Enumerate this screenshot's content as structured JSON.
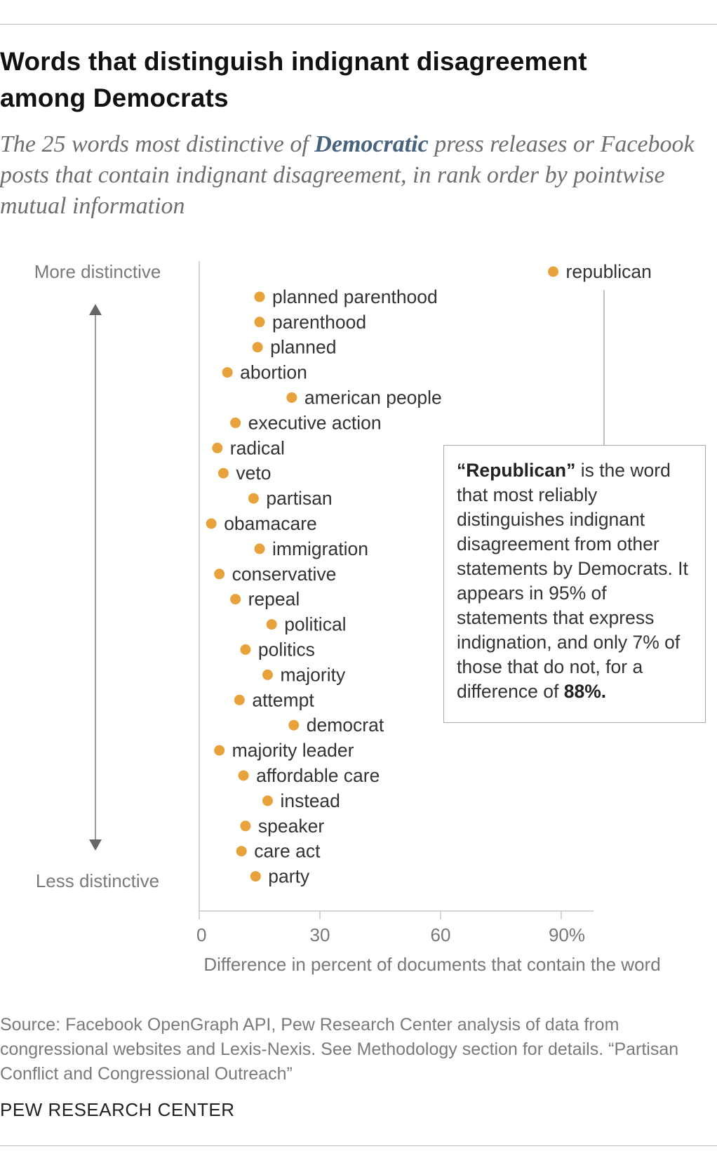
{
  "title": "Words that distinguish indignant disagreement among Democrats",
  "subtitle": {
    "before": "The 25 words most distinctive of ",
    "emphasis": "Democratic",
    "after": " press releases or Facebook posts that contain indignant disagreement, in rank order by pointwise mutual information"
  },
  "chart_data": {
    "type": "scatter",
    "xlabel": "Difference in percent of documents that contain the word",
    "xlim": [
      0,
      97
    ],
    "xticks": [
      {
        "value": 0,
        "label": "0"
      },
      {
        "value": 30,
        "label": "30"
      },
      {
        "value": 60,
        "label": "60"
      },
      {
        "value": 90,
        "label": "90%"
      }
    ],
    "ylabel_top": "More distinctive",
    "ylabel_bottom": "Less distinctive",
    "marker_color": "#e8a23c",
    "points": [
      {
        "rank": 1,
        "word": "republican",
        "x": 88
      },
      {
        "rank": 2,
        "word": "planned parenthood",
        "x": 15
      },
      {
        "rank": 3,
        "word": "parenthood",
        "x": 15
      },
      {
        "rank": 4,
        "word": "planned",
        "x": 14.5
      },
      {
        "rank": 5,
        "word": "abortion",
        "x": 7
      },
      {
        "rank": 6,
        "word": "american people",
        "x": 23
      },
      {
        "rank": 7,
        "word": "executive action",
        "x": 9
      },
      {
        "rank": 8,
        "word": "radical",
        "x": 4.5
      },
      {
        "rank": 9,
        "word": "veto",
        "x": 6
      },
      {
        "rank": 10,
        "word": "partisan",
        "x": 13.5
      },
      {
        "rank": 11,
        "word": "obamacare",
        "x": 3
      },
      {
        "rank": 12,
        "word": "immigration",
        "x": 15
      },
      {
        "rank": 13,
        "word": "conservative",
        "x": 5
      },
      {
        "rank": 14,
        "word": "repeal",
        "x": 9
      },
      {
        "rank": 15,
        "word": "political",
        "x": 18
      },
      {
        "rank": 16,
        "word": "politics",
        "x": 11.5
      },
      {
        "rank": 17,
        "word": "majority",
        "x": 17
      },
      {
        "rank": 18,
        "word": "attempt",
        "x": 10
      },
      {
        "rank": 19,
        "word": "democrat",
        "x": 23.5
      },
      {
        "rank": 20,
        "word": "majority leader",
        "x": 5
      },
      {
        "rank": 21,
        "word": "affordable care",
        "x": 11
      },
      {
        "rank": 22,
        "word": "instead",
        "x": 17
      },
      {
        "rank": 23,
        "word": "speaker",
        "x": 11.5
      },
      {
        "rank": 24,
        "word": "care act",
        "x": 10.5
      },
      {
        "rank": 25,
        "word": "party",
        "x": 14
      }
    ]
  },
  "annotation": {
    "bold_word": "“Republican”",
    "text1": " is the word that most reliably distinguishes indignant disagreement from other statements by Democrats. It appears in 95% of statements that express indignation, and only 7% of those that do not, for a difference of ",
    "bold_value": "88%.",
    "text2": ""
  },
  "source": "Source: Facebook OpenGraph API, Pew Research Center analysis of data from congressional websites and Lexis-Nexis. See Methodology section for details. “Partisan Conflict and Congressional Outreach”",
  "brand": "PEW RESEARCH CENTER"
}
